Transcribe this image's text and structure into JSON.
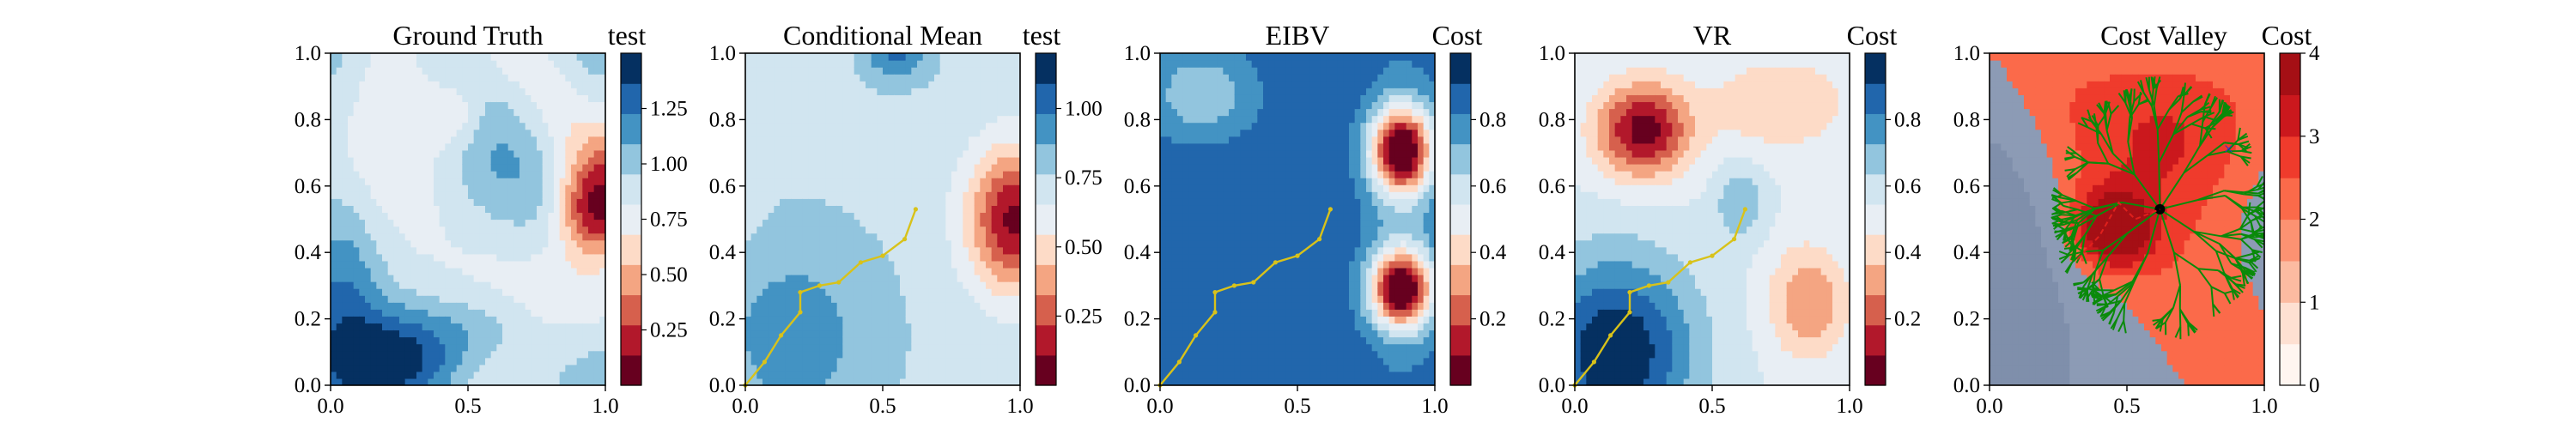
{
  "chart_data": [
    {
      "type": "heatmap",
      "title": "Ground Truth",
      "xlim": [
        0,
        1
      ],
      "ylim": [
        0,
        1
      ],
      "xticks": [
        "0.0",
        "0.5",
        "1.0"
      ],
      "yticks": [
        "0.0",
        "0.2",
        "0.4",
        "0.6",
        "0.8",
        "1.0"
      ],
      "colorbar": {
        "label": "test",
        "cmap": "RdBu",
        "range": [
          0.0,
          1.5
        ],
        "ticks": [
          "0.25",
          "0.50",
          "0.75",
          "1.00",
          "1.25"
        ]
      },
      "features": {
        "baseline": 0.9,
        "hot_spots": [
          {
            "x": 0.96,
            "y": 0.53,
            "value": 0.05
          }
        ],
        "low_regions": [
          {
            "x": 0.25,
            "y": 0.05,
            "value": 1.45
          }
        ]
      },
      "path": []
    },
    {
      "type": "heatmap",
      "title": "Conditional Mean",
      "xlim": [
        0,
        1
      ],
      "ylim": [
        0,
        1
      ],
      "xticks": [
        "0.0",
        "0.5",
        "1.0"
      ],
      "yticks": [
        "0.0",
        "0.2",
        "0.4",
        "0.6",
        "0.8",
        "1.0"
      ],
      "colorbar": {
        "label": "test",
        "cmap": "RdBu",
        "range": [
          0.0,
          1.2
        ],
        "ticks": [
          "0.25",
          "0.50",
          "0.75",
          "1.00"
        ]
      },
      "features": {
        "baseline": 0.95,
        "hot_spots": [
          {
            "x": 0.97,
            "y": 0.5,
            "value": 0.05
          }
        ]
      },
      "path": [
        [
          0.0,
          0.0
        ],
        [
          0.07,
          0.07
        ],
        [
          0.13,
          0.15
        ],
        [
          0.2,
          0.22
        ],
        [
          0.2,
          0.28
        ],
        [
          0.27,
          0.3
        ],
        [
          0.34,
          0.31
        ],
        [
          0.42,
          0.37
        ],
        [
          0.5,
          0.39
        ],
        [
          0.58,
          0.44
        ],
        [
          0.62,
          0.53
        ]
      ]
    },
    {
      "type": "heatmap",
      "title": "EIBV",
      "xlim": [
        0,
        1
      ],
      "ylim": [
        0,
        1
      ],
      "xticks": [
        "0.0",
        "0.5",
        "1.0"
      ],
      "yticks": [
        "0.0",
        "0.2",
        "0.4",
        "0.6",
        "0.8",
        "1.0"
      ],
      "colorbar": {
        "label": "Cost",
        "cmap": "RdBu",
        "range": [
          0.0,
          1.0
        ],
        "ticks": [
          "0.2",
          "0.4",
          "0.6",
          "0.8"
        ]
      },
      "features": {
        "hot_spots": [
          {
            "x": 0.88,
            "y": 0.71,
            "value": 0.05
          },
          {
            "x": 0.88,
            "y": 0.29,
            "value": 0.05
          }
        ]
      },
      "path": [
        [
          0.0,
          0.0
        ],
        [
          0.07,
          0.07
        ],
        [
          0.13,
          0.15
        ],
        [
          0.2,
          0.22
        ],
        [
          0.2,
          0.28
        ],
        [
          0.27,
          0.3
        ],
        [
          0.34,
          0.31
        ],
        [
          0.42,
          0.37
        ],
        [
          0.5,
          0.39
        ],
        [
          0.58,
          0.44
        ],
        [
          0.62,
          0.53
        ]
      ]
    },
    {
      "type": "heatmap",
      "title": "VR",
      "xlim": [
        0,
        1
      ],
      "ylim": [
        0,
        1
      ],
      "xticks": [
        "0.0",
        "0.5",
        "1.0"
      ],
      "yticks": [
        "0.0",
        "0.2",
        "0.4",
        "0.6",
        "0.8",
        "1.0"
      ],
      "colorbar": {
        "label": "Cost",
        "cmap": "RdBu",
        "range": [
          0.0,
          1.0
        ],
        "ticks": [
          "0.2",
          "0.4",
          "0.6",
          "0.8"
        ]
      },
      "features": {
        "hot_spots": [
          {
            "x": 0.25,
            "y": 0.77,
            "value": 0.05
          }
        ]
      },
      "path": [
        [
          0.0,
          0.0
        ],
        [
          0.07,
          0.07
        ],
        [
          0.13,
          0.15
        ],
        [
          0.2,
          0.22
        ],
        [
          0.2,
          0.28
        ],
        [
          0.27,
          0.3
        ],
        [
          0.34,
          0.31
        ],
        [
          0.42,
          0.37
        ],
        [
          0.5,
          0.39
        ],
        [
          0.58,
          0.44
        ],
        [
          0.62,
          0.53
        ]
      ]
    },
    {
      "type": "heatmap",
      "title": "Cost Valley",
      "xlim": [
        0,
        1
      ],
      "ylim": [
        0,
        1
      ],
      "xticks": [
        "0.0",
        "0.5",
        "1.0"
      ],
      "yticks": [
        "0.0",
        "0.2",
        "0.4",
        "0.6",
        "0.8",
        "1.0"
      ],
      "colorbar": {
        "label": "Cost",
        "cmap": "Reds",
        "range": [
          0,
          4
        ],
        "ticks": [
          "0",
          "1",
          "2",
          "3",
          "4"
        ]
      },
      "features": {
        "tree_root": {
          "x": 0.62,
          "y": 0.53
        },
        "target": {
          "x": 0.87,
          "y": 0.71
        }
      },
      "path": [
        [
          0.32,
          0.38
        ],
        [
          0.4,
          0.45
        ],
        [
          0.47,
          0.55
        ],
        [
          0.53,
          0.5
        ],
        [
          0.62,
          0.53
        ]
      ]
    }
  ]
}
